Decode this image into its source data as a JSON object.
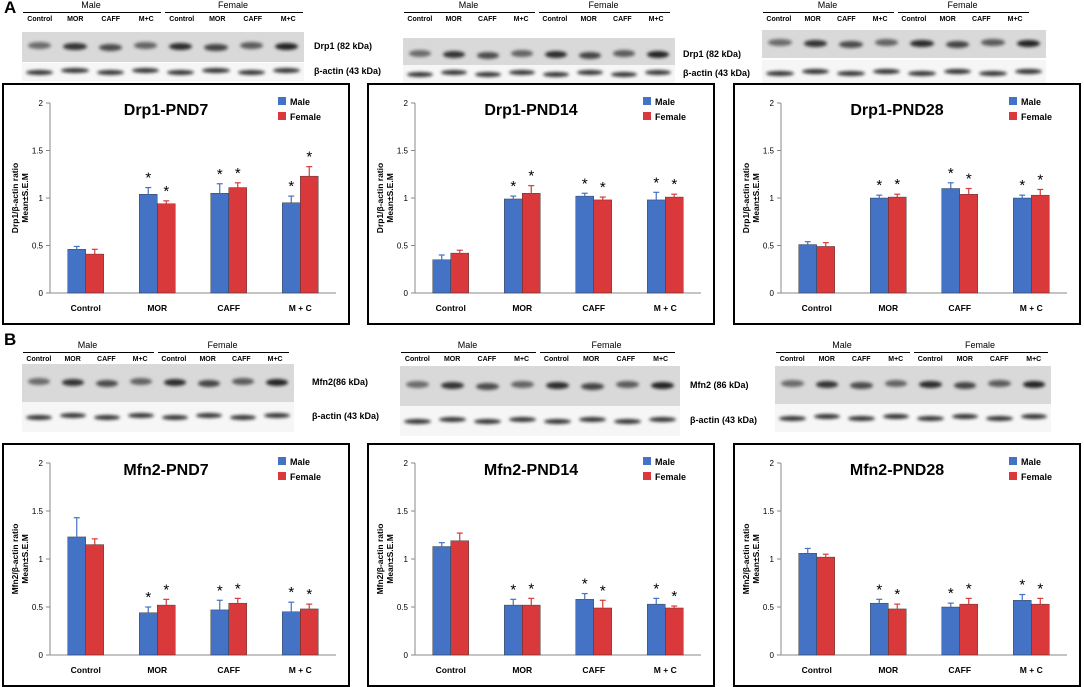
{
  "panels": [
    {
      "letter": "A",
      "label": "panel-a"
    },
    {
      "letter": "B",
      "label": "panel-b"
    }
  ],
  "sexes": {
    "male": "Male",
    "female": "Female"
  },
  "lanes": [
    "Control",
    "MOR",
    "CAFF",
    "M+C",
    "Control",
    "MOR",
    "CAFF",
    "M+C"
  ],
  "blots": [
    {
      "protein": "Drp1 (82 kDa)",
      "actin": "β-actin (43 kDa)"
    },
    {
      "protein": "Drp1 (82 kDa)",
      "actin": "β-actin (43 kDa)"
    },
    {
      "protein": "",
      "actin": ""
    },
    {
      "protein": "Mfn2(86 kDa)",
      "actin": "β-actin (43 kDa)"
    },
    {
      "protein": "Mfn2 (86 kDa)",
      "actin": "β-actin (43 kDa)"
    },
    {
      "protein": "",
      "actin": ""
    }
  ],
  "colors": {
    "male": "#4472C4",
    "female": "#D9393A"
  },
  "chart_data": [
    {
      "type": "bar",
      "title": "Drp1-PND7",
      "ylabel": "Drp1/β-actin ratio\nMean±S.E.M",
      "ylim": [
        0,
        2
      ],
      "yticks": [
        0,
        0.5,
        1,
        1.5,
        2
      ],
      "categories": [
        "Control",
        "MOR",
        "CAFF",
        "M + C"
      ],
      "series": [
        {
          "name": "Male",
          "values": [
            0.46,
            1.04,
            1.05,
            0.95
          ],
          "errors": [
            0.03,
            0.07,
            0.1,
            0.07
          ],
          "sig": [
            "",
            "*",
            "*",
            "*"
          ]
        },
        {
          "name": "Female",
          "values": [
            0.41,
            0.94,
            1.11,
            1.23
          ],
          "errors": [
            0.05,
            0.03,
            0.05,
            0.1
          ],
          "sig": [
            "",
            "*",
            "*",
            "*"
          ]
        }
      ]
    },
    {
      "type": "bar",
      "title": "Drp1-PND14",
      "ylabel": "Drp1/β-actin ratio\nMean±S.E.M",
      "ylim": [
        0,
        2
      ],
      "yticks": [
        0,
        0.5,
        1,
        1.5,
        2
      ],
      "categories": [
        "Control",
        "MOR",
        "CAFF",
        "M + C"
      ],
      "series": [
        {
          "name": "Male",
          "values": [
            0.35,
            0.99,
            1.02,
            0.98
          ],
          "errors": [
            0.05,
            0.03,
            0.03,
            0.08
          ],
          "sig": [
            "",
            "*",
            "*",
            "*"
          ]
        },
        {
          "name": "Female",
          "values": [
            0.42,
            1.05,
            0.98,
            1.01
          ],
          "errors": [
            0.03,
            0.08,
            0.03,
            0.03
          ],
          "sig": [
            "",
            "*",
            "*",
            "*"
          ]
        }
      ]
    },
    {
      "type": "bar",
      "title": "Drp1-PND28",
      "ylabel": "Drp1/β-actin ratio\nMean±S.E.M",
      "ylim": [
        0,
        2
      ],
      "yticks": [
        0,
        0.5,
        1,
        1.5,
        2
      ],
      "categories": [
        "Control",
        "MOR",
        "CAFF",
        "M + C"
      ],
      "series": [
        {
          "name": "Male",
          "values": [
            0.51,
            1.0,
            1.1,
            1.0
          ],
          "errors": [
            0.03,
            0.03,
            0.06,
            0.03
          ],
          "sig": [
            "",
            "*",
            "*",
            "*"
          ]
        },
        {
          "name": "Female",
          "values": [
            0.49,
            1.01,
            1.04,
            1.03
          ],
          "errors": [
            0.04,
            0.03,
            0.06,
            0.06
          ],
          "sig": [
            "",
            "*",
            "*",
            "*"
          ]
        }
      ]
    },
    {
      "type": "bar",
      "title": "Mfn2-PND7",
      "ylabel": "Mfn2/β-actin ratio\nMean±S.E.M",
      "ylim": [
        0,
        2
      ],
      "yticks": [
        0,
        0.5,
        1,
        1.5,
        2
      ],
      "categories": [
        "Control",
        "MOR",
        "CAFF",
        "M + C"
      ],
      "series": [
        {
          "name": "Male",
          "values": [
            1.23,
            0.44,
            0.47,
            0.45
          ],
          "errors": [
            0.2,
            0.06,
            0.1,
            0.1
          ],
          "sig": [
            "",
            "*",
            "*",
            "*"
          ]
        },
        {
          "name": "Female",
          "values": [
            1.15,
            0.52,
            0.54,
            0.48
          ],
          "errors": [
            0.06,
            0.06,
            0.05,
            0.05
          ],
          "sig": [
            "",
            "*",
            "*",
            "*"
          ]
        }
      ]
    },
    {
      "type": "bar",
      "title": "Mfn2-PND14",
      "ylabel": "Mfn2/β-actin ratio\nMean±S.E.M",
      "ylim": [
        0,
        2
      ],
      "yticks": [
        0,
        0.5,
        1,
        1.5,
        2
      ],
      "categories": [
        "Control",
        "MOR",
        "CAFF",
        "M + C"
      ],
      "series": [
        {
          "name": "Male",
          "values": [
            1.13,
            0.52,
            0.58,
            0.53
          ],
          "errors": [
            0.04,
            0.06,
            0.06,
            0.06
          ],
          "sig": [
            "",
            "*",
            "*",
            "*"
          ]
        },
        {
          "name": "Female",
          "values": [
            1.19,
            0.52,
            0.49,
            0.49
          ],
          "errors": [
            0.08,
            0.07,
            0.08,
            0.02
          ],
          "sig": [
            "",
            "*",
            "*",
            "*"
          ]
        }
      ]
    },
    {
      "type": "bar",
      "title": "Mfn2-PND28",
      "ylabel": "Mfn2/β-actin ratio\nMean±S.E.M",
      "ylim": [
        0,
        2
      ],
      "yticks": [
        0,
        0.5,
        1,
        1.5,
        2
      ],
      "categories": [
        "Control",
        "MOR",
        "CAFF",
        "M + C"
      ],
      "series": [
        {
          "name": "Male",
          "values": [
            1.06,
            0.54,
            0.5,
            0.57
          ],
          "errors": [
            0.05,
            0.04,
            0.04,
            0.06
          ],
          "sig": [
            "",
            "*",
            "*",
            "*"
          ]
        },
        {
          "name": "Female",
          "values": [
            1.02,
            0.48,
            0.53,
            0.53
          ],
          "errors": [
            0.03,
            0.05,
            0.06,
            0.06
          ],
          "sig": [
            "",
            "*",
            "*",
            "*"
          ]
        }
      ]
    }
  ]
}
